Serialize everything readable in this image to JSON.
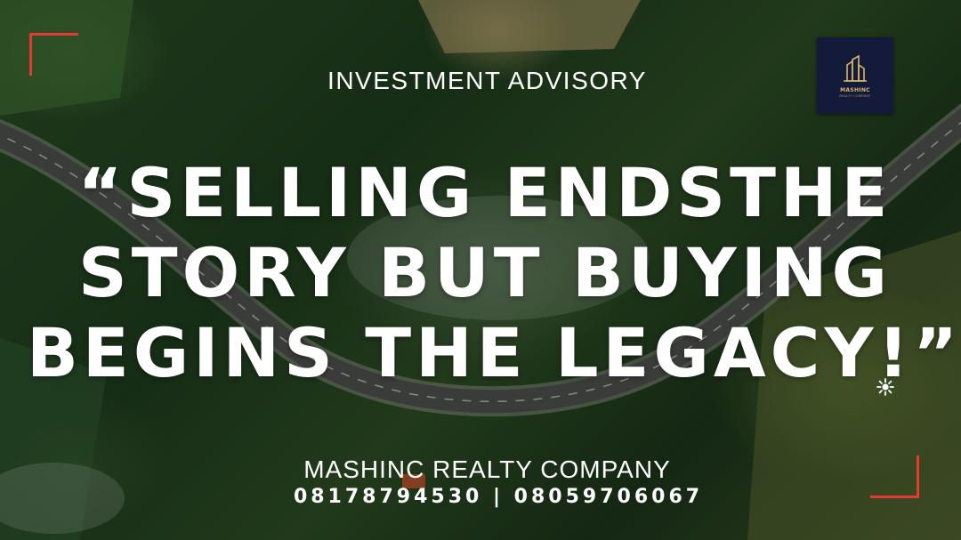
{
  "eyebrow": "INVESTMENT ADVISORY",
  "headline": {
    "lines": [
      "“SELLING ENDSTHE",
      "STORY BUT BUYING",
      "BEGINS THE LEGACY!”"
    ]
  },
  "company": "MASHINC REALTY COMPANY",
  "phones": "08178794530 | 08059706067",
  "logo": {
    "name": "MASHINC",
    "subtitle": "REALTY COMPANY",
    "icon": "building-logo-icon"
  },
  "decorations": {
    "corner_color": "#e53935",
    "sparkle_icon": "sparkle-icon"
  },
  "colors": {
    "text": "#ffffff",
    "logo_bg": "#141a3a",
    "logo_gold": "#d7b66a"
  }
}
